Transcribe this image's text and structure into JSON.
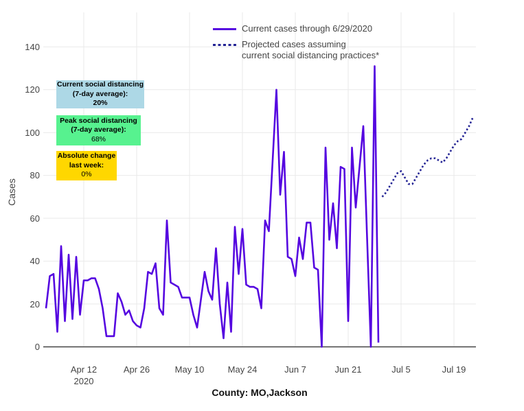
{
  "legend": {
    "current_label": "Current cases through 6/29/2020",
    "projected_label_line1": "Projected cases assuming",
    "projected_label_line2": "current social distancing practices*"
  },
  "annotations": {
    "current_sd": {
      "line1": "Current social distancing",
      "line2": "(7-day average):",
      "value": "20%",
      "bg": "#ADD8E6"
    },
    "peak_sd": {
      "line1": "Peak social distancing",
      "line2": "(7-day average):",
      "value": "68%",
      "bg": "#57F28F"
    },
    "abs_change": {
      "line1": "Absolute change",
      "line2": "last week:",
      "value": "0%",
      "bg": "#FFD700"
    }
  },
  "chart_data": {
    "type": "line",
    "title": "",
    "xlabel": "County: MO,Jackson",
    "ylabel": "Cases",
    "ylim": [
      0,
      140
    ],
    "grid": true,
    "legend_position": "top-center",
    "y_ticks": [
      0,
      20,
      40,
      60,
      80,
      100,
      120,
      140
    ],
    "x_ticks": [
      {
        "label": "Apr 12",
        "sub": "2020",
        "day": 10
      },
      {
        "label": "Apr 26",
        "day": 24
      },
      {
        "label": "May 10",
        "day": 38
      },
      {
        "label": "May 24",
        "day": 52
      },
      {
        "label": "Jun 7",
        "day": 66
      },
      {
        "label": "Jun 21",
        "day": 80
      },
      {
        "label": "Jul 5",
        "day": 94
      },
      {
        "label": "Jul 19",
        "day": 108
      }
    ],
    "x_start_date": "2020-04-02",
    "series": [
      {
        "name": "Current cases through 6/29/2020",
        "style": "solid",
        "color": "#5506e0",
        "start_day": 0,
        "values": [
          18,
          33,
          34,
          7,
          47,
          12,
          43,
          13,
          42,
          15,
          31,
          31,
          32,
          32,
          27,
          18,
          5,
          5,
          5,
          25,
          21,
          15,
          17,
          12,
          10,
          9,
          18,
          35,
          34,
          39,
          18,
          15,
          59,
          30,
          29,
          28,
          23,
          23,
          23,
          15,
          9,
          22,
          35,
          26,
          22,
          46,
          20,
          4,
          30,
          7,
          56,
          34,
          55,
          29,
          28,
          28,
          27,
          18,
          59,
          54,
          87,
          120,
          71,
          91,
          42,
          41,
          33,
          51,
          41,
          58,
          58,
          37,
          36,
          0,
          93,
          50,
          67,
          46,
          84,
          83,
          12,
          93,
          65,
          84,
          103,
          51,
          0,
          131,
          2
        ]
      },
      {
        "name": "Projected cases assuming current social distancing practices*",
        "style": "dotted",
        "color": "#232394",
        "start_day": 89,
        "values": [
          70,
          72,
          75,
          78,
          81,
          82,
          79,
          76,
          76,
          79,
          82,
          85,
          87,
          88,
          88,
          87,
          86,
          88,
          91,
          94,
          96,
          97,
          100,
          103,
          107
        ]
      }
    ],
    "colors": {
      "grid": "#e9e9e9",
      "axis_line": "#444444",
      "tick_text": "#444444"
    }
  }
}
